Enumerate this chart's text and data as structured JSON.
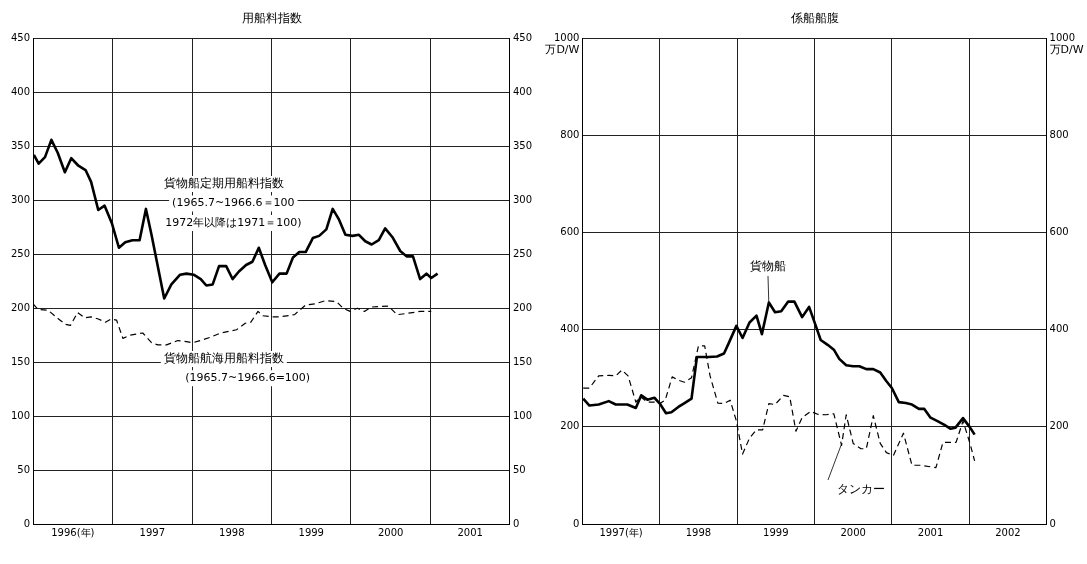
{
  "chart_data": [
    {
      "type": "line",
      "title": "用船料指数",
      "xlim": [
        1996,
        2002
      ],
      "xticks": [
        {
          "value": 1996,
          "label": null
        },
        {
          "value": 1996.5,
          "label": "1996(年)"
        },
        {
          "value": 1997,
          "label": null
        },
        {
          "value": 1997.5,
          "label": "1997"
        },
        {
          "value": 1998,
          "label": null
        },
        {
          "value": 1998.5,
          "label": "1998"
        },
        {
          "value": 1999,
          "label": null
        },
        {
          "value": 1999.5,
          "label": "1999"
        },
        {
          "value": 2000,
          "label": null
        },
        {
          "value": 2000.5,
          "label": "2000"
        },
        {
          "value": 2001,
          "label": null
        },
        {
          "value": 2001.5,
          "label": "2001"
        },
        {
          "value": 2002,
          "label": null
        }
      ],
      "ylim": [
        0,
        450
      ],
      "yticks": [
        0,
        50,
        100,
        150,
        200,
        250,
        300,
        350,
        400,
        450
      ],
      "y2lim": [
        0,
        450
      ],
      "y2ticks": [
        0,
        50,
        100,
        150,
        200,
        250,
        300,
        350,
        400,
        450
      ],
      "grid": true,
      "annotations": [
        "(1965.7~1966.6＝100",
        "1972年以降は1971＝100)",
        "(1965.7~1966.6=100)"
      ],
      "series": [
        {
          "name": "貨物船定期用船料指数",
          "color": "#000000",
          "line_style": "solid",
          "x": [
            1996.01,
            1996.07,
            1996.15,
            1996.23,
            1996.31,
            1996.4,
            1996.48,
            1996.57,
            1996.66,
            1996.73,
            1996.82,
            1996.9,
            1996.99,
            1997.08,
            1997.16,
            1997.25,
            1997.34,
            1997.42,
            1997.49,
            1997.65,
            1997.74,
            1997.85,
            1997.93,
            1998.02,
            1998.11,
            1998.18,
            1998.26,
            1998.34,
            1998.43,
            1998.51,
            1998.59,
            1998.68,
            1998.76,
            1998.84,
            1998.92,
            1999.01,
            1999.1,
            1999.19,
            1999.27,
            1999.35,
            1999.43,
            1999.52,
            1999.6,
            1999.69,
            1999.77,
            1999.85,
            1999.93,
            2000.02,
            2000.1,
            2000.18,
            2000.26,
            2000.35,
            2000.43,
            2000.52,
            2000.62,
            2000.7,
            2000.78,
            2000.87,
            2000.95,
            2001.01,
            2001.09
          ],
          "values": [
            342,
            334,
            340,
            356,
            344,
            326,
            339,
            332,
            328,
            317,
            291,
            295,
            279,
            256,
            261,
            263,
            263,
            292,
            268,
            209,
            222,
            231,
            232,
            231,
            227,
            221,
            222,
            239,
            239,
            227,
            234,
            240,
            243,
            256,
            240,
            224,
            232,
            232,
            247,
            252,
            252,
            265,
            267,
            273,
            292,
            282,
            268,
            267,
            268,
            262,
            259,
            263,
            274,
            266,
            253,
            248,
            248,
            227,
            232,
            228,
            232
          ]
        },
        {
          "name": "貨物船航海用船料指数",
          "color": "#000000",
          "line_style": "dashed",
          "x": [
            1996.0,
            1996.06,
            1996.19,
            1996.32,
            1996.41,
            1996.47,
            1996.56,
            1996.65,
            1996.73,
            1996.82,
            1996.91,
            1996.98,
            1997.05,
            1997.13,
            1997.22,
            1997.38,
            1997.49,
            1997.57,
            1997.68,
            1997.82,
            1997.93,
            1998.01,
            1998.1,
            1998.23,
            1998.36,
            1998.5,
            1998.56,
            1998.67,
            1998.74,
            1998.83,
            1998.89,
            1999.0,
            1999.11,
            1999.29,
            1999.43,
            1999.55,
            1999.68,
            1999.82,
            1999.9,
            1999.99,
            2000.08,
            2000.17,
            2000.25,
            2000.47,
            2000.58,
            2000.69,
            2000.87,
            2001.01
          ],
          "values": [
            204,
            199,
            198,
            190,
            185,
            184,
            196,
            191,
            192,
            190,
            187,
            190,
            189,
            172,
            175,
            177,
            168,
            166,
            166,
            170,
            169,
            168,
            170,
            173,
            177,
            179,
            180,
            186,
            187,
            197,
            193,
            192,
            192,
            194,
            203,
            204,
            207,
            206,
            200,
            197,
            200,
            197,
            201,
            202,
            194,
            195,
            197,
            197
          ]
        }
      ]
    },
    {
      "type": "line",
      "title": "係船船腹",
      "ylabel": "万D/W",
      "y2label": "万D/W",
      "xlim": [
        1997,
        2003
      ],
      "xticks": [
        {
          "value": 1997,
          "label": null
        },
        {
          "value": 1997.5,
          "label": "1997(年)"
        },
        {
          "value": 1998,
          "label": null
        },
        {
          "value": 1998.5,
          "label": "1998"
        },
        {
          "value": 1999,
          "label": null
        },
        {
          "value": 1999.5,
          "label": "1999"
        },
        {
          "value": 2000,
          "label": null
        },
        {
          "value": 2000.5,
          "label": "2000"
        },
        {
          "value": 2001,
          "label": null
        },
        {
          "value": 2001.5,
          "label": "2001"
        },
        {
          "value": 2002,
          "label": null
        },
        {
          "value": 2002.5,
          "label": "2002"
        },
        {
          "value": 2003,
          "label": null
        }
      ],
      "ylim": [
        0,
        1000
      ],
      "yticks": [
        0,
        200,
        400,
        600,
        800,
        1000
      ],
      "y2lim": [
        0,
        1000
      ],
      "y2ticks": [
        0,
        200,
        400,
        600,
        800,
        1000
      ],
      "grid": true,
      "series": [
        {
          "name": "貨物船",
          "color": "#000000",
          "line_style": "solid",
          "x": [
            1997.01,
            1997.09,
            1997.21,
            1997.34,
            1997.43,
            1997.58,
            1997.69,
            1997.76,
            1997.84,
            1997.93,
            1998.0,
            1998.08,
            1998.15,
            1998.24,
            1998.32,
            1998.41,
            1998.48,
            1998.54,
            1998.63,
            1998.74,
            1998.83,
            1998.89,
            1998.99,
            1999.07,
            1999.16,
            1999.25,
            1999.32,
            1999.41,
            1999.49,
            1999.57,
            1999.66,
            1999.74,
            1999.84,
            1999.93,
            2000.01,
            2000.08,
            2000.17,
            2000.25,
            2000.32,
            2000.41,
            2000.5,
            2000.58,
            2000.67,
            2000.76,
            2000.85,
            2000.93,
            2001.0,
            2001.09,
            2001.18,
            2001.26,
            2001.35,
            2001.42,
            2001.5,
            2001.59,
            2001.68,
            2001.76,
            2001.82,
            2001.92,
            2002.01,
            2002.07
          ],
          "values": [
            258,
            244,
            246,
            253,
            246,
            246,
            239,
            265,
            256,
            260,
            248,
            228,
            230,
            241,
            249,
            258,
            344,
            344,
            344,
            345,
            351,
            372,
            408,
            383,
            415,
            429,
            391,
            456,
            436,
            438,
            458,
            458,
            426,
            447,
            411,
            379,
            369,
            359,
            340,
            327,
            325,
            325,
            319,
            319,
            312,
            294,
            280,
            251,
            249,
            246,
            237,
            237,
            219,
            212,
            204,
            196,
            198,
            218,
            199,
            184
          ]
        },
        {
          "name": "タンカー",
          "color": "#000000",
          "line_style": "dashed",
          "x": [
            1997.01,
            1997.09,
            1997.21,
            1997.34,
            1997.43,
            1997.51,
            1997.59,
            1997.69,
            1997.75,
            1997.84,
            1997.93,
            1998.0,
            1998.07,
            1998.16,
            1998.24,
            1998.32,
            1998.41,
            1998.5,
            1998.58,
            1998.65,
            1998.75,
            1998.83,
            1998.91,
            1998.99,
            1999.07,
            1999.16,
            1999.25,
            1999.33,
            1999.41,
            1999.49,
            1999.6,
            1999.68,
            1999.76,
            1999.84,
            1999.95,
            2000.04,
            2000.15,
            2000.25,
            2000.35,
            2000.41,
            2000.5,
            2000.6,
            2000.67,
            2000.76,
            2000.85,
            2000.93,
            2001.02,
            2001.15,
            2001.26,
            2001.37,
            2001.57,
            2001.66,
            2001.75,
            2001.83,
            2001.92,
            2002.01,
            2002.07
          ],
          "values": [
            280,
            280,
            305,
            306,
            305,
            317,
            305,
            251,
            262,
            251,
            251,
            248,
            255,
            303,
            296,
            292,
            301,
            367,
            367,
            305,
            249,
            248,
            255,
            212,
            144,
            177,
            194,
            194,
            248,
            246,
            265,
            262,
            191,
            219,
            232,
            226,
            225,
            227,
            162,
            225,
            166,
            155,
            155,
            223,
            166,
            147,
            141,
            187,
            121,
            121,
            116,
            168,
            168,
            168,
            212,
            166,
            130
          ]
        }
      ]
    }
  ]
}
